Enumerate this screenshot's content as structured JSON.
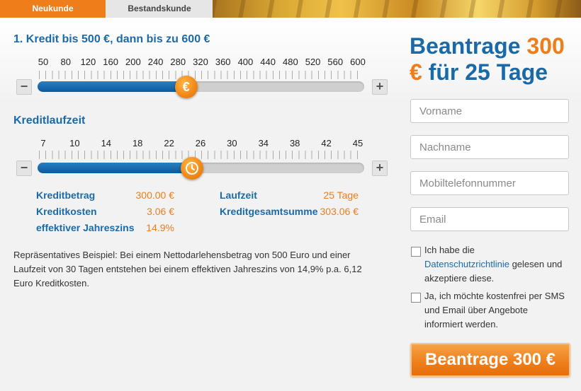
{
  "tabs": {
    "new_customer": "Neukunde",
    "existing_customer": "Bestandskunde"
  },
  "credit": {
    "title": "1. Kredit bis 500 €, dann bis zu 600 €",
    "ticks": [
      "50",
      "80",
      "120",
      "160",
      "200",
      "240",
      "280",
      "320",
      "360",
      "400",
      "440",
      "480",
      "520",
      "560",
      "600"
    ],
    "value": 300,
    "min": 50,
    "max": 600,
    "knob_symbol": "€",
    "minus": "−",
    "plus": "+"
  },
  "duration": {
    "title": "Kreditlaufzeit",
    "ticks": [
      "7",
      "10",
      "14",
      "18",
      "22",
      "26",
      "30",
      "34",
      "38",
      "42",
      "45"
    ],
    "value": 25,
    "min": 7,
    "max": 45,
    "knob_icon": "clock-icon",
    "minus": "−",
    "plus": "+"
  },
  "summary": {
    "kreditbetrag_label": "Kreditbetrag",
    "kreditbetrag_value": "300.00 €",
    "kreditkosten_label": "Kreditkosten",
    "kreditkosten_value": "3.06 €",
    "jahreszins_label": "effektiver Jahreszins",
    "jahreszins_value": "14.9%",
    "laufzeit_label": "Laufzeit",
    "laufzeit_value": "25 Tage",
    "gesamtsumme_label": "Kreditgesamtsumme",
    "gesamtsumme_value": "303.06 €"
  },
  "example_text": "Repräsentatives Beispiel: Bei einem Nettodarlehensbetrag von 500 Euro und einer Laufzeit von 30 Tagen entstehen bei einem effektiven Jahreszins von 14,9% p.a. 6,12 Euro Kreditkosten.",
  "promo": {
    "part1": "Beantrage ",
    "amount": "300",
    "currency": "€",
    "part2": " für 25 Tage"
  },
  "form": {
    "vorname_placeholder": "Vorname",
    "nachname_placeholder": "Nachname",
    "mobil_placeholder": "Mobiltelefonnummer",
    "email_placeholder": "Email",
    "privacy_pre": "Ich habe die",
    "privacy_link": "Datenschutzrichtlinie",
    "privacy_post": " gelesen und akzeptiere diese.",
    "sms_text": "Ja, ich möchte kostenfrei per SMS und Email über Angebote informiert werden.",
    "submit_label": "Beantrage 300 €"
  },
  "colors": {
    "accent_orange": "#ee7d1a",
    "brand_blue": "#1b6aa8"
  }
}
